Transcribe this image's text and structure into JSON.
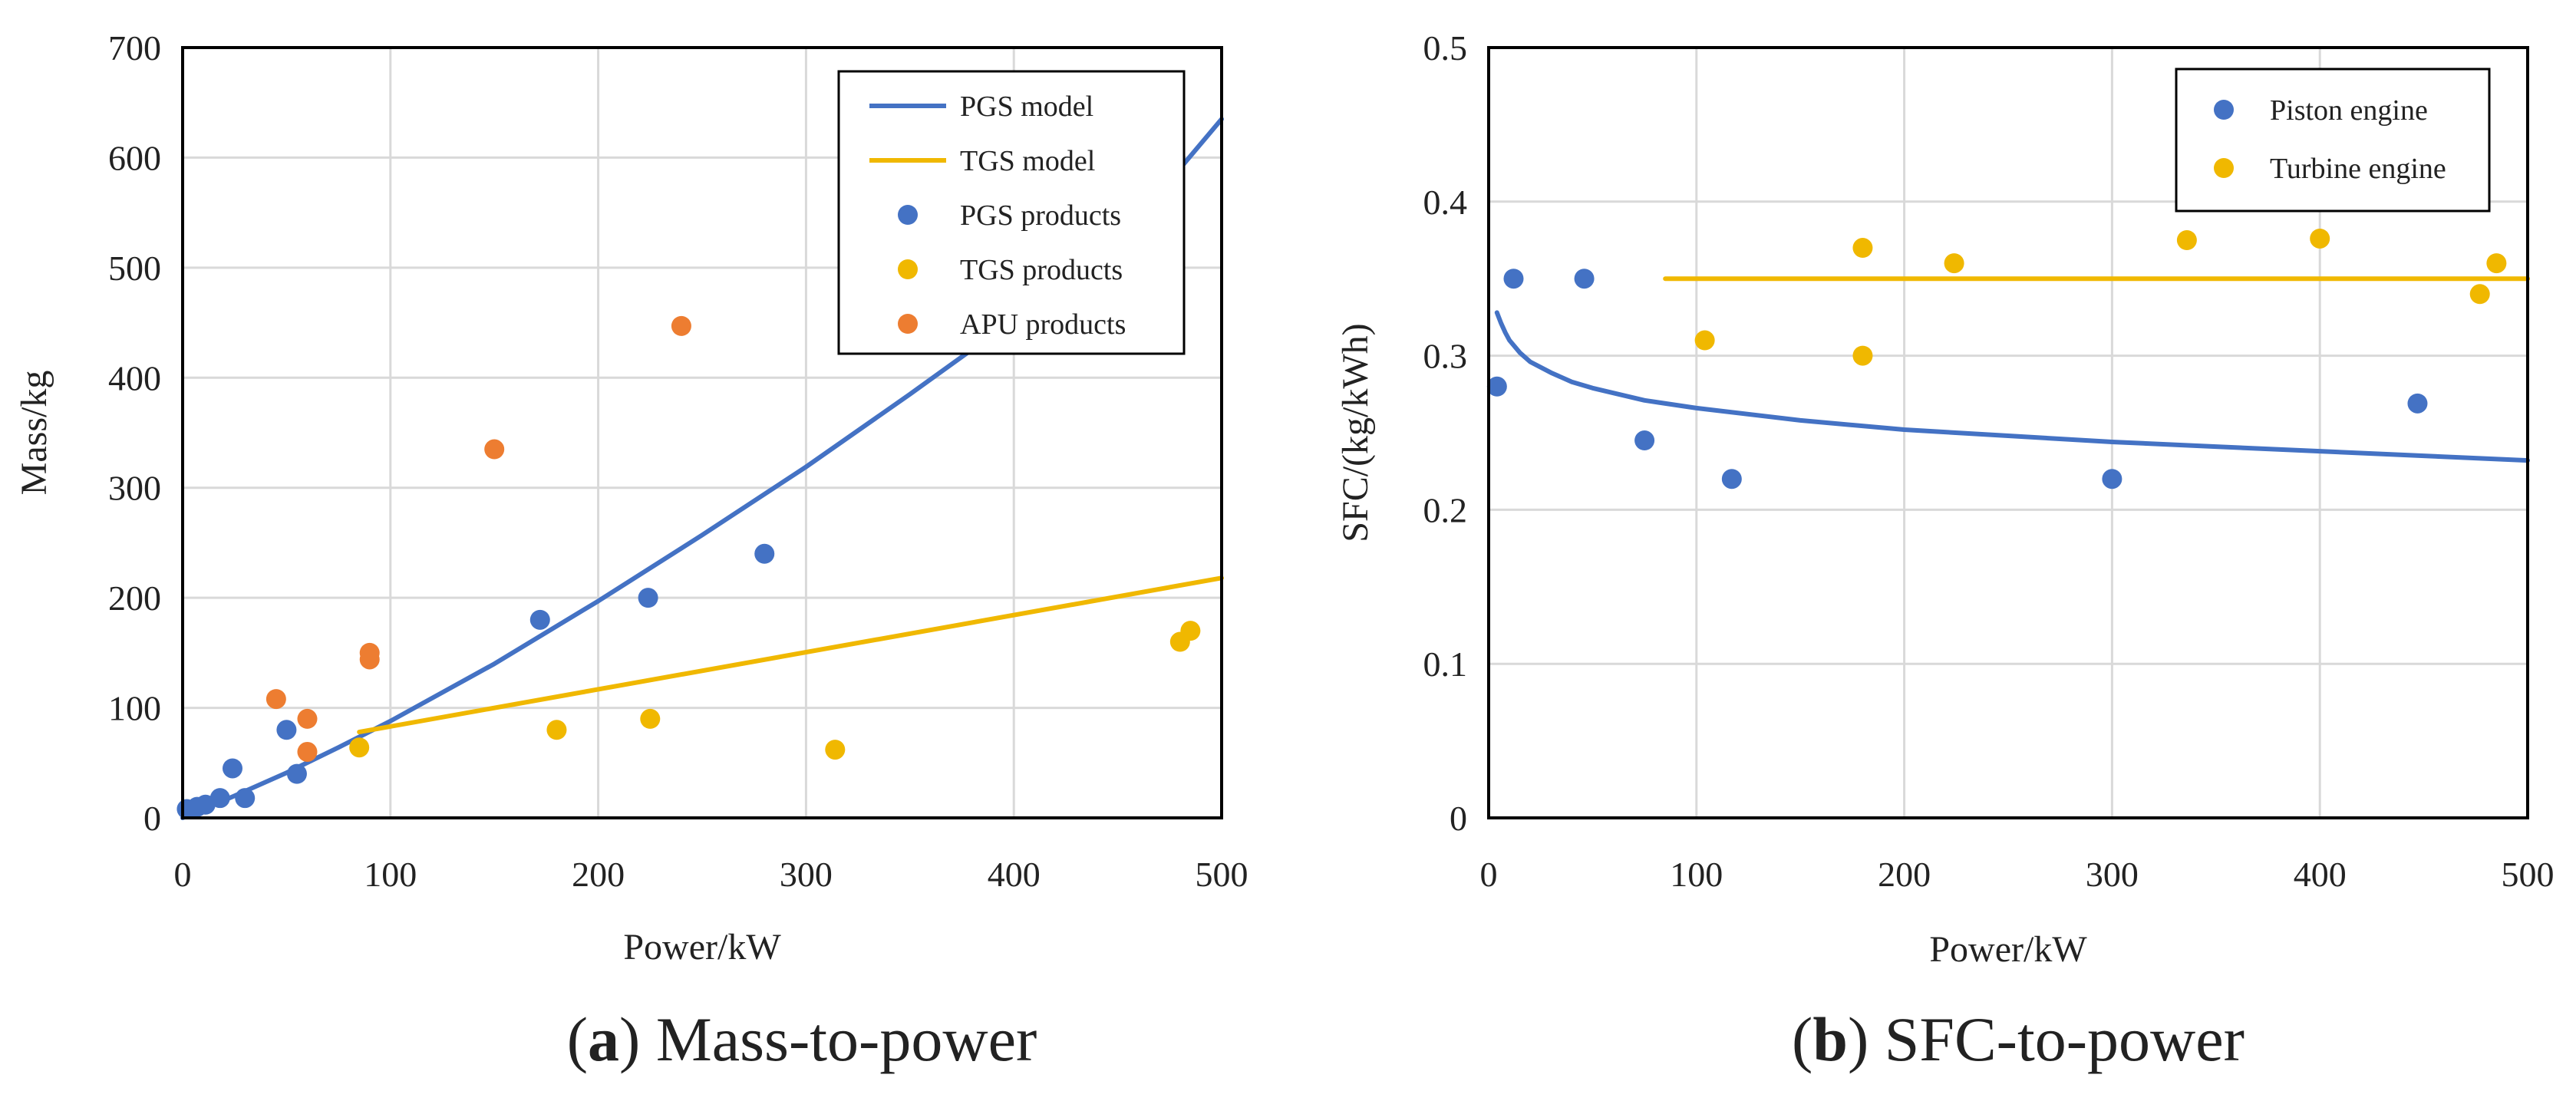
{
  "colors": {
    "blue": "#4472c4",
    "yellow": "#f0b800",
    "orange": "#ed7d31",
    "grid": "#d9d9d9",
    "text": "#222222"
  },
  "captions": [
    {
      "letter": "a",
      "open": "(",
      "close": ")",
      "text": " Mass-to-power"
    },
    {
      "letter": "b",
      "open": "(",
      "close": ")",
      "text": " SFC-to-power"
    }
  ],
  "chart_data": [
    {
      "id": "a",
      "type": "scatter",
      "xlabel": "Power/kW",
      "ylabel": "Mass/kg",
      "xlim": [
        0,
        500
      ],
      "ylim": [
        0,
        700
      ],
      "xticks": [
        0,
        100,
        200,
        300,
        400,
        500
      ],
      "yticks": [
        0,
        100,
        200,
        300,
        400,
        500,
        600,
        700
      ],
      "xtick_labels": [
        "0",
        "100",
        "200",
        "300",
        "400",
        "500"
      ],
      "ytick_labels": [
        "0",
        "100",
        "200",
        "300",
        "400",
        "500",
        "600",
        "700"
      ],
      "grid": true,
      "legend_position": "top-right",
      "series": [
        {
          "name": "PGS model",
          "kind": "line",
          "color": "#4472c4",
          "x": [
            0,
            25,
            50,
            75,
            100,
            150,
            200,
            250,
            300,
            350,
            400,
            450,
            500
          ],
          "y": [
            0,
            20,
            41,
            64,
            88,
            140,
            197,
            257,
            319,
            385,
            453,
            523,
            635
          ]
        },
        {
          "name": "TGS model",
          "kind": "line",
          "color": "#f0b800",
          "x": [
            85,
            500
          ],
          "y": [
            78,
            218
          ]
        },
        {
          "name": "PGS products",
          "kind": "points",
          "color": "#4472c4",
          "x": [
            2,
            7,
            11,
            18,
            24,
            30,
            50,
            55,
            172,
            224,
            280
          ],
          "y": [
            8,
            10,
            12,
            18,
            45,
            18,
            80,
            40,
            180,
            200,
            240
          ]
        },
        {
          "name": "TGS products",
          "kind": "points",
          "color": "#f0b800",
          "x": [
            85,
            180,
            225,
            314,
            480,
            485
          ],
          "y": [
            64,
            80,
            90,
            62,
            160,
            170
          ]
        },
        {
          "name": "APU products",
          "kind": "points",
          "color": "#ed7d31",
          "x": [
            45,
            60,
            60,
            90,
            90,
            150,
            240
          ],
          "y": [
            108,
            90,
            60,
            150,
            144,
            335,
            447
          ]
        }
      ]
    },
    {
      "id": "b",
      "type": "scatter",
      "xlabel": "Power/kW",
      "ylabel": "SFC/(kg/kWh)",
      "xlim": [
        0,
        500
      ],
      "ylim": [
        0,
        0.5
      ],
      "xticks": [
        0,
        100,
        200,
        300,
        400,
        500
      ],
      "yticks": [
        0,
        0.1,
        0.2,
        0.3,
        0.4,
        0.5
      ],
      "xtick_labels": [
        "0",
        "100",
        "200",
        "300",
        "400",
        "500"
      ],
      "ytick_labels": [
        "0",
        "0.1",
        "0.2",
        "0.3",
        "0.4",
        "0.5"
      ],
      "grid": true,
      "legend_position": "top-right",
      "series": [
        {
          "name": "Piston engine curve",
          "legend": false,
          "kind": "line",
          "color": "#4472c4",
          "x": [
            4,
            6,
            8,
            10,
            15,
            20,
            30,
            40,
            50,
            75,
            100,
            150,
            200,
            250,
            300,
            350,
            400,
            450,
            500
          ],
          "y": [
            0.328,
            0.321,
            0.315,
            0.31,
            0.302,
            0.296,
            0.289,
            0.283,
            0.279,
            0.271,
            0.266,
            0.258,
            0.252,
            0.248,
            0.244,
            0.241,
            0.238,
            0.235,
            0.232
          ]
        },
        {
          "name": "Turbine engine line",
          "legend": false,
          "kind": "line",
          "color": "#f0b800",
          "x": [
            85,
            500
          ],
          "y": [
            0.35,
            0.35
          ]
        },
        {
          "name": "Piston engine",
          "kind": "points",
          "color": "#4472c4",
          "x": [
            4,
            12,
            46,
            75,
            117,
            300,
            447
          ],
          "y": [
            0.28,
            0.35,
            0.35,
            0.245,
            0.22,
            0.22,
            0.269
          ]
        },
        {
          "name": "Turbine engine",
          "kind": "points",
          "color": "#f0b800",
          "x": [
            104,
            180,
            180,
            224,
            336,
            400,
            477,
            485
          ],
          "y": [
            0.31,
            0.37,
            0.3,
            0.36,
            0.375,
            0.376,
            0.34,
            0.36
          ]
        }
      ]
    }
  ]
}
